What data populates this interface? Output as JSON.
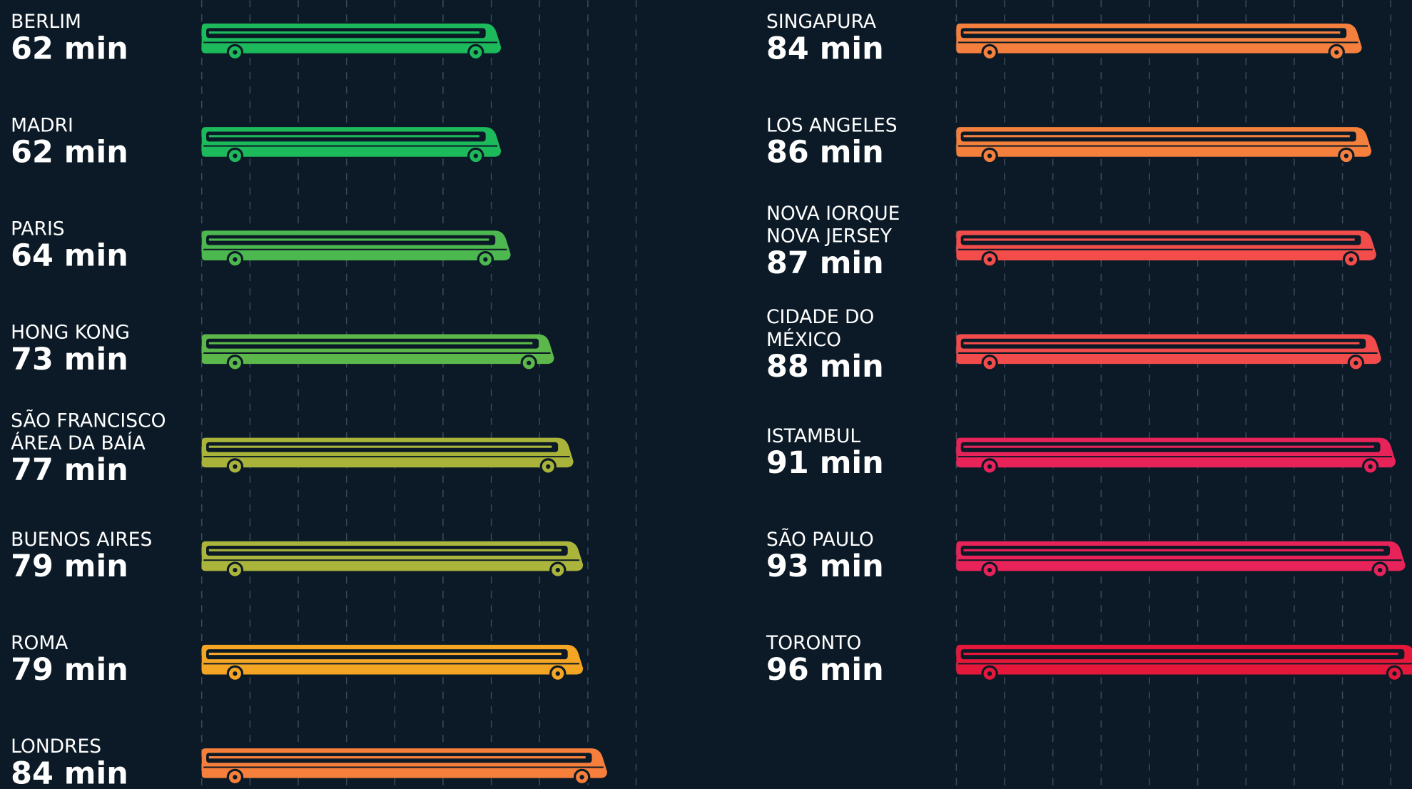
{
  "chart_data": [
    {
      "type": "bus-bar",
      "categories": [
        "BERLIM",
        "MADRI",
        "PARIS",
        "HONG KONG",
        "SÃO FRANCISCO\nÁREA DA BAÍA",
        "BUENOS AIRES",
        "ROMA",
        "LONDRES"
      ],
      "values": [
        62,
        62,
        64,
        73,
        77,
        79,
        79,
        84
      ],
      "value_labels": [
        "62 min",
        "62 min",
        "64 min",
        "73 min",
        "77 min",
        "79 min",
        "79 min",
        "84 min"
      ],
      "colors": [
        "#1dba5c",
        "#1dba5c",
        "#4cb84f",
        "#5cb84a",
        "#a9b33a",
        "#abb53c",
        "#f5a524",
        "#f57f3b"
      ],
      "xticks": [
        0,
        10,
        20,
        30,
        40,
        50,
        60,
        70,
        80,
        90
      ]
    },
    {
      "type": "bus-bar",
      "categories": [
        "SINGAPURA",
        "LOS ANGELES",
        "NOVA IORQUE\nNOVA JERSEY",
        "CIDADE DO\nMÉXICO",
        "ISTAMBUL",
        "SÃO PAULO",
        "TORONTO"
      ],
      "values": [
        84,
        86,
        87,
        88,
        91,
        93,
        96
      ],
      "value_labels": [
        "84 min",
        "86 min",
        "87 min",
        "88 min",
        "91 min",
        "93 min",
        "96 min"
      ],
      "colors": [
        "#f5803e",
        "#f5803e",
        "#f24d4b",
        "#f24b4b",
        "#e8235a",
        "#e8235a",
        "#e5183b"
      ],
      "xticks": [
        0,
        10,
        20,
        30,
        40,
        50,
        60,
        70,
        80,
        90
      ]
    }
  ]
}
